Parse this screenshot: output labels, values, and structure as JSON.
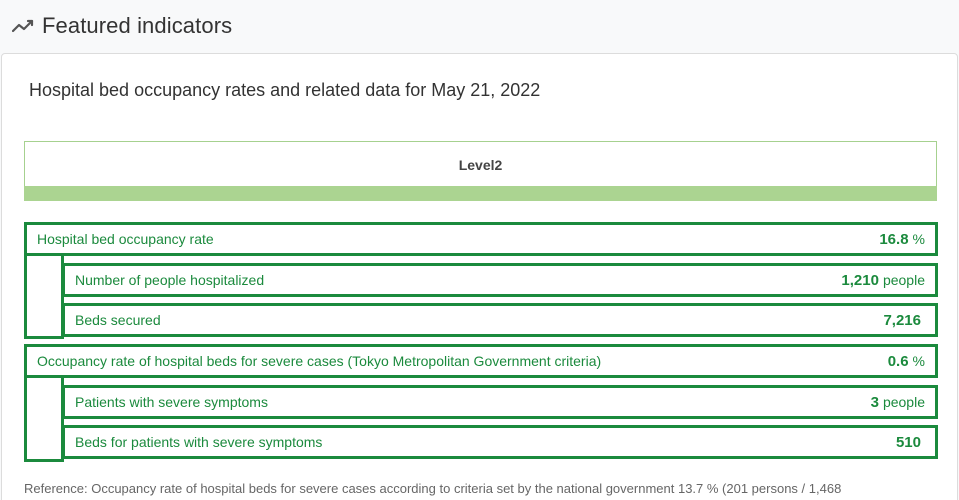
{
  "header": {
    "title": "Featured indicators",
    "icon": "trend-line-icon"
  },
  "card": {
    "title": "Hospital bed occupancy rates and related data for May 21, 2022",
    "level": "Level2",
    "colors": {
      "accent": "#1b8a3d",
      "level_bar": "#abd491"
    },
    "indicators": [
      {
        "label": "Hospital bed occupancy rate",
        "value": "16.8",
        "unit": "%"
      },
      {
        "label": "Number of people hospitalized",
        "value": "1,210",
        "unit": "people"
      },
      {
        "label": "Beds secured",
        "value": "7,216",
        "unit": ""
      },
      {
        "label": "Occupancy rate of hospital beds for severe cases (Tokyo Metropolitan Government criteria)",
        "value": "0.6",
        "unit": "%"
      },
      {
        "label": "Patients with severe symptoms",
        "value": "3",
        "unit": "people"
      },
      {
        "label": "Beds for patients with severe symptoms",
        "value": "510",
        "unit": ""
      }
    ],
    "footnote": "Reference: Occupancy rate of hospital beds for severe cases according to criteria set by the national government 13.7 % (201 persons / 1,468"
  }
}
